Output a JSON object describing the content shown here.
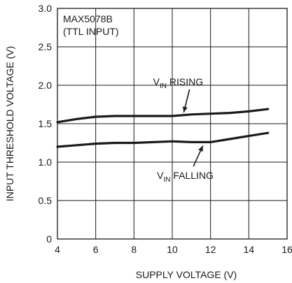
{
  "chart_data": {
    "type": "line",
    "title_lines": [
      "MAX5078B",
      "(TTL INPUT)"
    ],
    "xlabel": "SUPPLY VOLTAGE (V)",
    "ylabel": "INPUT THRESHOLD VOLTAGE (V)",
    "xlim": [
      4,
      16
    ],
    "ylim": [
      0,
      3.0
    ],
    "xticks": [
      "4",
      "6",
      "8",
      "10",
      "12",
      "14",
      "16"
    ],
    "yticks": [
      "0",
      "0.5",
      "1.0",
      "1.5",
      "2.0",
      "2.5",
      "3.0"
    ],
    "grid": true,
    "series": [
      {
        "name": "RISING",
        "label_main": "V",
        "label_sub": "IN",
        "label_rest": " RISING",
        "x": [
          4,
          5,
          6,
          7,
          8,
          9,
          10,
          11,
          12,
          13,
          14,
          15
        ],
        "y": [
          1.52,
          1.56,
          1.59,
          1.6,
          1.6,
          1.6,
          1.6,
          1.62,
          1.63,
          1.64,
          1.66,
          1.69
        ]
      },
      {
        "name": "FALLING",
        "label_main": "V",
        "label_sub": "IN",
        "label_rest": " FALLING",
        "x": [
          4,
          5,
          6,
          7,
          8,
          9,
          10,
          11,
          12,
          13,
          14,
          15
        ],
        "y": [
          1.2,
          1.22,
          1.24,
          1.25,
          1.25,
          1.26,
          1.27,
          1.26,
          1.26,
          1.3,
          1.34,
          1.38
        ]
      }
    ],
    "annotations": [
      {
        "series": 0,
        "text_x": 9.0,
        "text_y": 2.0,
        "tip_x": 10.6,
        "tip_y": 1.61
      },
      {
        "series": 1,
        "text_x": 9.2,
        "text_y": 0.78,
        "tip_x": 11.6,
        "tip_y": 1.26
      }
    ]
  }
}
